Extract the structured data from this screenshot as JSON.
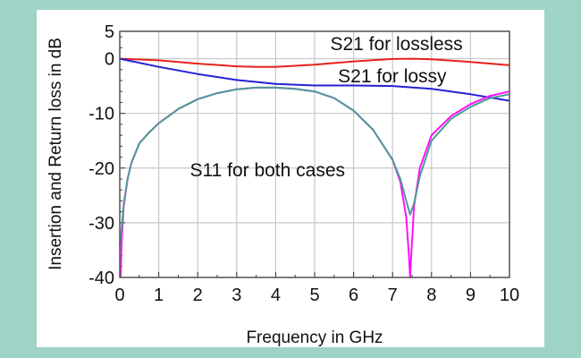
{
  "chart_data": {
    "type": "line",
    "title": "",
    "xlabel": "Frequency in GHz",
    "ylabel": "Insertion and Return loss in dB",
    "xlim": [
      0,
      10
    ],
    "ylim": [
      -40,
      5
    ],
    "xticks": [
      0,
      1,
      2,
      3,
      4,
      5,
      6,
      7,
      8,
      9,
      10
    ],
    "yticks": [
      5,
      0,
      -10,
      -20,
      -30,
      -40
    ],
    "grid": true,
    "annotations": [
      {
        "text": "S21 for lossless",
        "x": 5.4,
        "y": 1.6
      },
      {
        "text": "S21 for lossy",
        "x": 5.6,
        "y": -4.3
      },
      {
        "text": "S11 for both cases",
        "x": 1.8,
        "y": -21.5
      }
    ],
    "series": [
      {
        "color": "#e8201c",
        "x": [
          0,
          1,
          2,
          3,
          3.5,
          4,
          5,
          6,
          7,
          7.5,
          8,
          9,
          10
        ],
        "y": [
          0,
          -0.3,
          -0.9,
          -1.4,
          -1.5,
          -1.5,
          -1.1,
          -0.5,
          -0.05,
          0,
          -0.1,
          -0.6,
          -1.2
        ]
      },
      {
        "color": "#2222d6",
        "x": [
          0,
          1,
          2,
          3,
          4,
          5,
          6,
          7,
          8,
          9,
          10
        ],
        "y": [
          0,
          -1.5,
          -2.8,
          -3.9,
          -4.6,
          -4.9,
          -4.9,
          -5.0,
          -5.5,
          -6.5,
          -7.7
        ]
      },
      {
        "color": "#ff10ff",
        "x": [
          0.02,
          0.05,
          0.1,
          0.2,
          0.3,
          0.5,
          0.75,
          1,
          1.5,
          2,
          2.5,
          3,
          3.5,
          4,
          4.5,
          5,
          5.5,
          6,
          6.5,
          7,
          7.2,
          7.35,
          7.42,
          7.45,
          7.48,
          7.55,
          7.7,
          8,
          8.5,
          9,
          9.5,
          10
        ],
        "y": [
          -40,
          -33,
          -27,
          -22,
          -19,
          -15.5,
          -13.5,
          -11.8,
          -9.2,
          -7.4,
          -6.3,
          -5.6,
          -5.3,
          -5.3,
          -5.5,
          -6.0,
          -7.2,
          -9.5,
          -13,
          -18.5,
          -22.5,
          -29,
          -36,
          -40,
          -36,
          -27,
          -20,
          -14,
          -10.5,
          -8.3,
          -6.8,
          -6.0
        ]
      },
      {
        "color": "#4e9a96",
        "x": [
          0,
          0.05,
          0.1,
          0.2,
          0.3,
          0.5,
          0.75,
          1,
          1.5,
          2,
          2.5,
          3,
          3.5,
          4,
          4.5,
          5,
          5.5,
          6,
          6.5,
          7,
          7.2,
          7.35,
          7.45,
          7.55,
          7.7,
          8,
          8.5,
          9,
          9.5,
          10
        ],
        "y": [
          -34,
          -31,
          -26.5,
          -22,
          -19,
          -15.5,
          -13.5,
          -11.8,
          -9.2,
          -7.4,
          -6.3,
          -5.6,
          -5.3,
          -5.3,
          -5.5,
          -6.0,
          -7.2,
          -9.5,
          -13,
          -18.5,
          -22,
          -26,
          -28.5,
          -26.5,
          -21.5,
          -15,
          -11,
          -8.8,
          -7.2,
          -6.5
        ]
      }
    ]
  }
}
